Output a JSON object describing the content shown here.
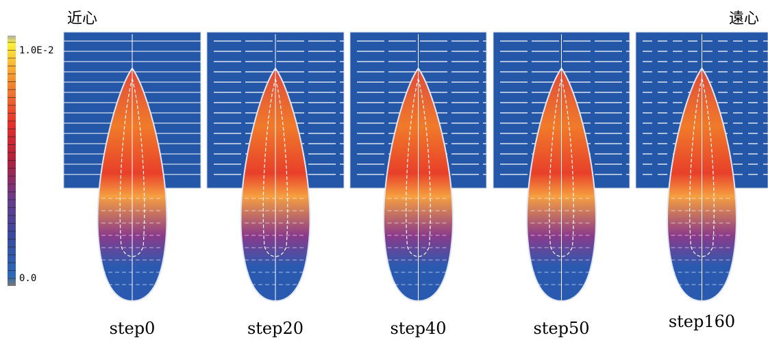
{
  "header": {
    "left": "近心",
    "right": "遠心"
  },
  "colorbar": {
    "max_label": "1.0E-2",
    "min_label": "0.0"
  },
  "panels": [
    {
      "label": "step0"
    },
    {
      "label": "step20"
    },
    {
      "label": "step40"
    },
    {
      "label": "step50"
    },
    {
      "label": "step160"
    }
  ]
}
